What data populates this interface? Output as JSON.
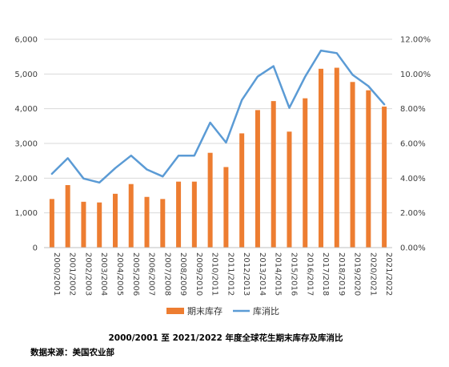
{
  "chart_data": {
    "type": "bar",
    "title": "2000/2001 至 2021/2022 年度全球花生期末库存及库消比",
    "source": "数据来源：美国农业部",
    "categories": [
      "2000/2001",
      "2001/2002",
      "2002/2003",
      "2003/2004",
      "2004/2005",
      "2005/2006",
      "2006/2007",
      "2007/2008",
      "2008/2009",
      "2009/2010",
      "2010/2011",
      "2011/2012",
      "2012/2013",
      "2013/2014",
      "2014/2015",
      "2015/2016",
      "2016/2017",
      "2017/2018",
      "2018/2019",
      "2019/2020",
      "2020/2021",
      "2021/2022"
    ],
    "series": [
      {
        "name": "期末库存",
        "type": "bar",
        "axis": "left",
        "color": "#ED7D31",
        "values": [
          1400,
          1800,
          1320,
          1300,
          1550,
          1830,
          1460,
          1400,
          1900,
          1900,
          2730,
          2320,
          3290,
          3960,
          4220,
          3340,
          4300,
          5150,
          5180,
          4770,
          4530,
          4060
        ]
      },
      {
        "name": "库消比",
        "type": "line",
        "axis": "right",
        "color": "#5B9BD5",
        "values": [
          0.0425,
          0.0515,
          0.0398,
          0.0375,
          0.0458,
          0.053,
          0.045,
          0.041,
          0.053,
          0.053,
          0.072,
          0.0605,
          0.085,
          0.0985,
          0.1045,
          0.0805,
          0.0985,
          0.1135,
          0.112,
          0.0995,
          0.093,
          0.0825
        ]
      }
    ],
    "y_left": {
      "ticks": [
        "0",
        "1,000",
        "2,000",
        "3,000",
        "4,000",
        "5,000",
        "6,000"
      ],
      "ylim": [
        0,
        6000
      ]
    },
    "y_right": {
      "ticks": [
        "0.00%",
        "2.00%",
        "4.00%",
        "6.00%",
        "8.00%",
        "10.00%",
        "12.00%"
      ],
      "ylim": [
        0,
        0.12
      ]
    },
    "grid": true,
    "legend_position": "bottom"
  }
}
